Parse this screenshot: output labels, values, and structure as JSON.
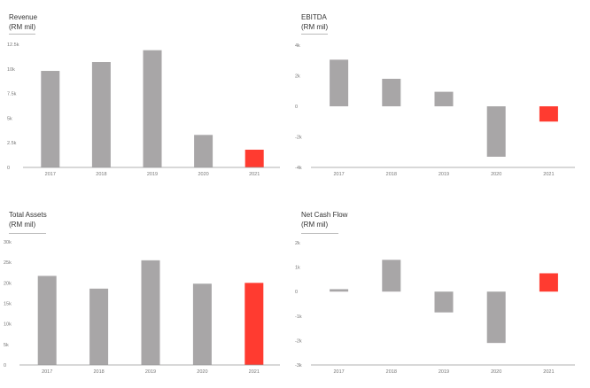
{
  "colors": {
    "bar": "#a8a6a7",
    "highlight": "#ff3b30",
    "axis": "#999999"
  },
  "chart_data": [
    {
      "type": "bar",
      "title": "Revenue",
      "subtitle": "(RM mil)",
      "categories": [
        "2017",
        "2018",
        "2019",
        "2020",
        "2021"
      ],
      "values": [
        9800,
        10700,
        11900,
        3300,
        1800
      ],
      "highlight_index": 4,
      "ylim": [
        0,
        12500
      ],
      "yticks": [
        0,
        2500,
        5000,
        7500,
        10000,
        12500
      ],
      "ytick_labels": [
        "0",
        "2.5k",
        "5k",
        "7.5k",
        "10k",
        "12.5k"
      ]
    },
    {
      "type": "bar",
      "title": "EBITDA",
      "subtitle": "(RM mil)",
      "categories": [
        "2017",
        "2018",
        "2019",
        "2020",
        "2021"
      ],
      "values": [
        3050,
        1800,
        950,
        -3300,
        -1000
      ],
      "highlight_index": 4,
      "ylim": [
        -4000,
        4000
      ],
      "yticks": [
        -4000,
        -2000,
        0,
        2000,
        4000
      ],
      "ytick_labels": [
        "-4k",
        "-2k",
        "0",
        "2k",
        "4k"
      ]
    },
    {
      "type": "bar",
      "title": "Total Assets",
      "subtitle": "(RM mil)",
      "categories": [
        "2017",
        "2018",
        "2019",
        "2020",
        "2021"
      ],
      "values": [
        21700,
        18600,
        25500,
        19800,
        20000
      ],
      "highlight_index": 4,
      "ylim": [
        0,
        30000
      ],
      "yticks": [
        0,
        5000,
        10000,
        15000,
        20000,
        25000,
        30000
      ],
      "ytick_labels": [
        "0",
        "5k",
        "10k",
        "15k",
        "20k",
        "25k",
        "30k"
      ]
    },
    {
      "type": "bar",
      "title": "Net Cash Flow",
      "subtitle": "(RM mil)",
      "categories": [
        "2017",
        "2018",
        "2019",
        "2020",
        "2021"
      ],
      "values": [
        100,
        1300,
        -850,
        -2100,
        750
      ],
      "highlight_index": 4,
      "ylim": [
        -3000,
        2000
      ],
      "yticks": [
        -3000,
        -2000,
        -1000,
        0,
        1000,
        2000
      ],
      "ytick_labels": [
        "-3k",
        "-2k",
        "-1k",
        "0",
        "1k",
        "2k"
      ]
    }
  ]
}
